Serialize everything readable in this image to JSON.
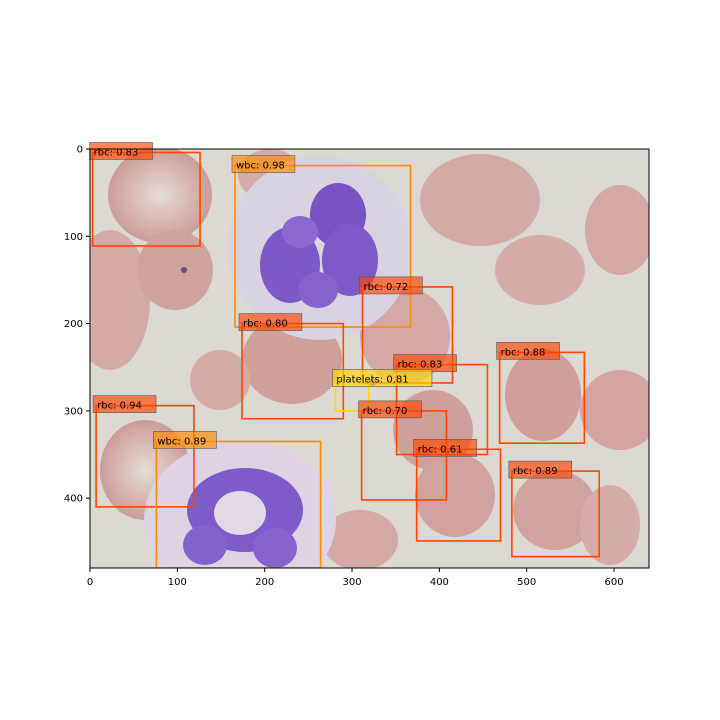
{
  "image": {
    "width": 640,
    "height": 480,
    "description_colors": {
      "background": "#dcd8d2",
      "rbc": "#d3a29f",
      "rbc_edge": "#c4918e",
      "wbc_cytoplasm": "#d8cfe2",
      "wbc_nucleus": "#7c56c8"
    }
  },
  "axes": {
    "x_ticks": [
      0,
      100,
      200,
      300,
      400,
      500,
      600
    ],
    "y_ticks": [
      0,
      100,
      200,
      300,
      400
    ],
    "xlim": [
      0,
      640
    ],
    "ylim": [
      480,
      0
    ]
  },
  "detections": [
    {
      "cls": "rbc",
      "label": "rbc: 0.83",
      "color": "#ff4500",
      "x1": 3,
      "y1": 4,
      "x2": 126,
      "y2": 111
    },
    {
      "cls": "wbc",
      "label": "wbc: 0.98",
      "color": "#ff8c00",
      "x1": 166,
      "y1": 19,
      "x2": 367,
      "y2": 204
    },
    {
      "cls": "rbc",
      "label": "rbc: 0.72",
      "color": "#ff4500",
      "x1": 312,
      "y1": 158,
      "x2": 415,
      "y2": 268
    },
    {
      "cls": "rbc",
      "label": "rbc: 0.80",
      "color": "#ff4500",
      "x1": 174,
      "y1": 200,
      "x2": 290,
      "y2": 309
    },
    {
      "cls": "rbc",
      "label": "rbc: 0.83",
      "color": "#ff4500",
      "x1": 351,
      "y1": 247,
      "x2": 455,
      "y2": 350
    },
    {
      "cls": "rbc",
      "label": "rbc: 0.88",
      "color": "#ff4500",
      "x1": 469,
      "y1": 233,
      "x2": 566,
      "y2": 337
    },
    {
      "cls": "platelets",
      "label": "platelets: 0.81",
      "color": "#ffd700",
      "x1": 281,
      "y1": 264,
      "x2": 319,
      "y2": 300
    },
    {
      "cls": "rbc",
      "label": "rbc: 0.94",
      "color": "#ff4500",
      "x1": 7,
      "y1": 294,
      "x2": 119,
      "y2": 410
    },
    {
      "cls": "rbc",
      "label": "rbc: 0.70",
      "color": "#ff4500",
      "x1": 311,
      "y1": 300,
      "x2": 408,
      "y2": 402
    },
    {
      "cls": "wbc",
      "label": "wbc: 0.89",
      "color": "#ff8c00",
      "x1": 76,
      "y1": 335,
      "x2": 264,
      "y2": 480
    },
    {
      "cls": "rbc",
      "label": "rbc: 0.61",
      "color": "#ff4500",
      "x1": 374,
      "y1": 344,
      "x2": 470,
      "y2": 449
    },
    {
      "cls": "rbc",
      "label": "rbc: 0.89",
      "color": "#ff4500",
      "x1": 483,
      "y1": 369,
      "x2": 583,
      "y2": 467
    }
  ]
}
